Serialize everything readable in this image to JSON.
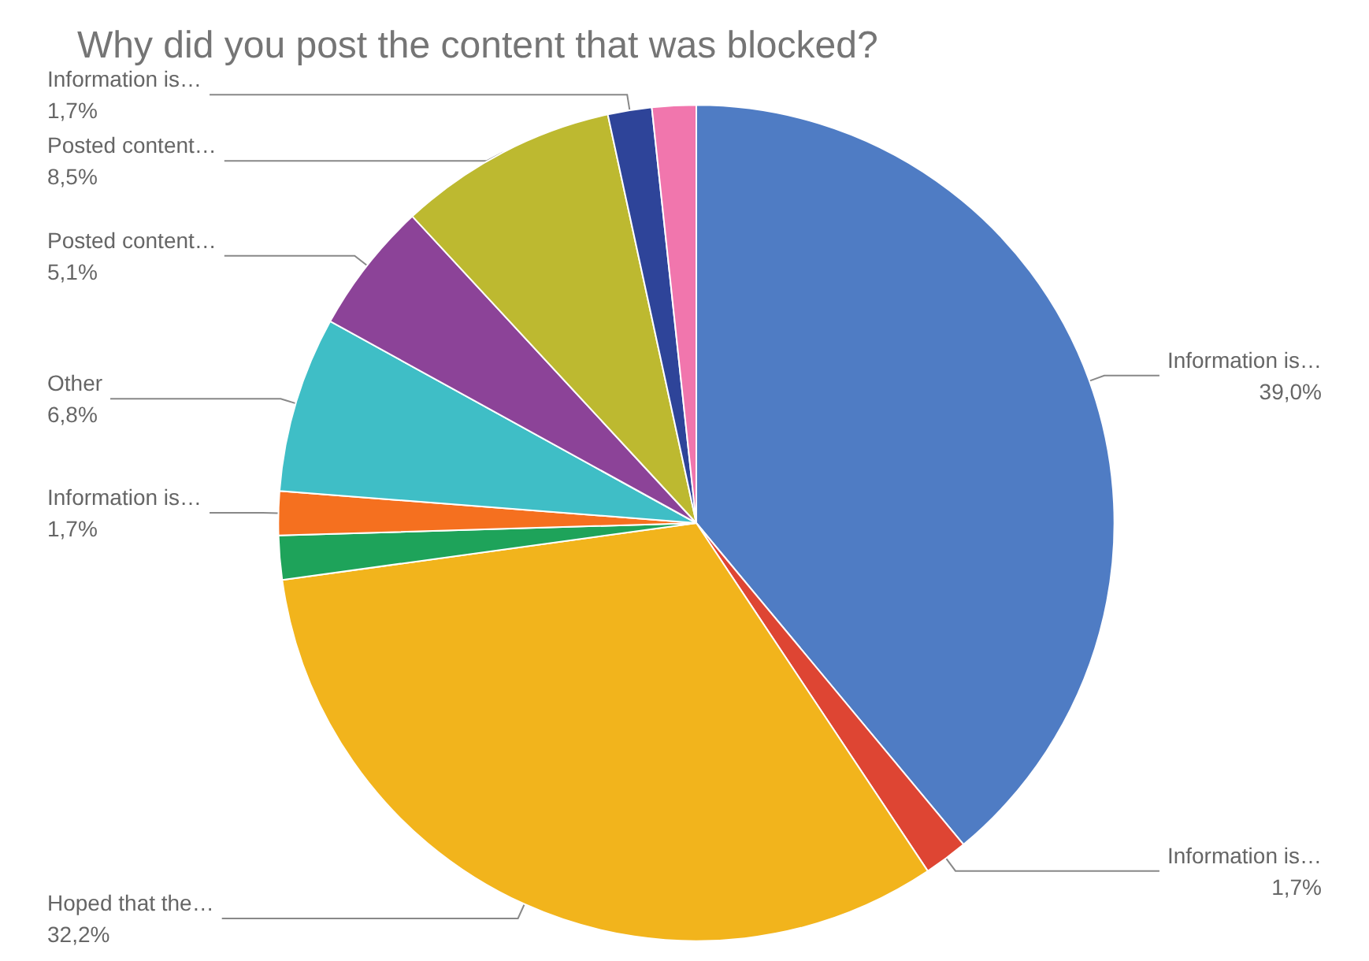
{
  "chart_data": {
    "type": "pie",
    "title": "Why did you post the content that was blocked?",
    "categories": [
      "Information is…",
      "Information is…",
      "Hoped that the…",
      null,
      "Information is…",
      "Other",
      "Posted content…",
      "Posted content…",
      "Information is…",
      null
    ],
    "values": [
      39.0,
      1.7,
      32.2,
      1.7,
      1.7,
      6.8,
      5.1,
      8.5,
      1.7,
      1.7
    ],
    "value_labels": [
      "39,0%",
      "1,7%",
      "32,2%",
      null,
      "1,7%",
      "6,8%",
      "5,1%",
      "8,5%",
      "1,7%",
      null
    ],
    "colors": [
      "#4f7cc4",
      "#de4533",
      "#f2b41c",
      "#1ea35a",
      "#f5701f",
      "#3fbec6",
      "#8c4398",
      "#bdb930",
      "#2e4499",
      "#f176ad"
    ],
    "legend": false
  }
}
